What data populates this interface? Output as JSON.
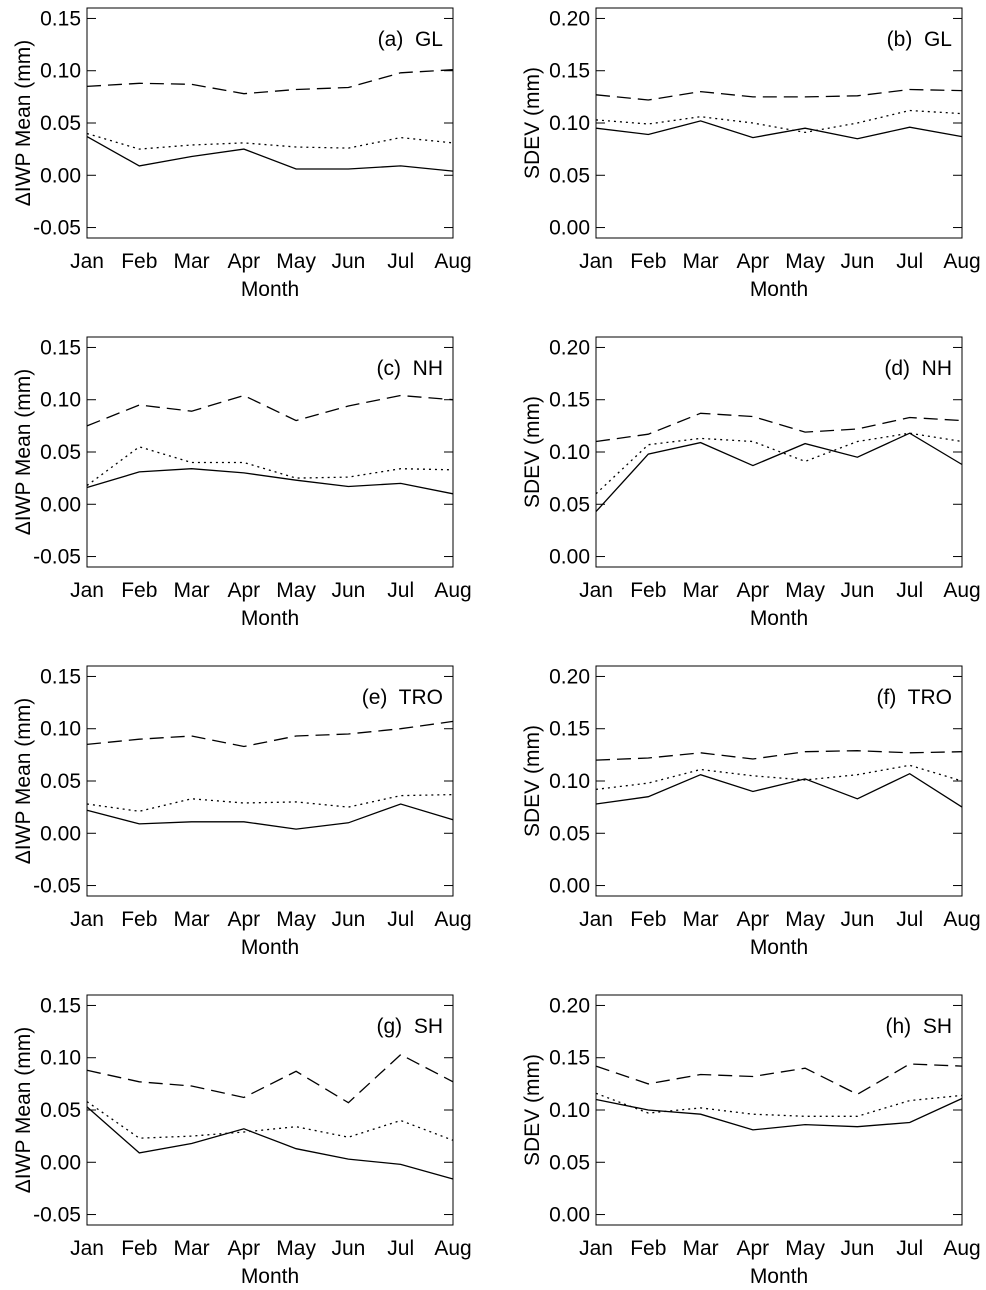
{
  "chart_data": [
    {
      "type": "line",
      "annotation": "(a)  GL",
      "y_label": "ΔIWP Mean (mm)",
      "x_label": "Month",
      "categories": [
        "Jan",
        "Feb",
        "Mar",
        "Apr",
        "May",
        "Jun",
        "Jul",
        "Aug"
      ],
      "ylim": [
        -0.06,
        0.16
      ],
      "yticks": [
        {
          "value": 0.15,
          "label": "0.15"
        },
        {
          "value": 0.1,
          "label": "0.10"
        },
        {
          "value": 0.05,
          "label": "0.05"
        },
        {
          "value": 0,
          "label": "0.00"
        },
        {
          "value": -0.05,
          "label": "-0.05"
        }
      ],
      "series": [
        {
          "color": "#000000",
          "style": "solid",
          "values": [
            0.037,
            0.009,
            0.018,
            0.025,
            0.006,
            0.006,
            0.009,
            0.004
          ]
        },
        {
          "color": "#000000",
          "style": "dashed",
          "values": [
            0.085,
            0.088,
            0.087,
            0.078,
            0.082,
            0.084,
            0.098,
            0.101
          ]
        },
        {
          "color": "#000000",
          "style": "dotted",
          "values": [
            0.04,
            0.025,
            0.029,
            0.031,
            0.027,
            0.026,
            0.036,
            0.031
          ]
        }
      ]
    },
    {
      "type": "line",
      "annotation": "(b)  GL",
      "y_label": "SDEV (mm)",
      "x_label": "Month",
      "categories": [
        "Jan",
        "Feb",
        "Mar",
        "Apr",
        "May",
        "Jun",
        "Jul",
        "Aug"
      ],
      "ylim": [
        -0.01,
        0.21
      ],
      "yticks": [
        {
          "value": 0.2,
          "label": "0.20"
        },
        {
          "value": 0.15,
          "label": "0.15"
        },
        {
          "value": 0.1,
          "label": "0.10"
        },
        {
          "value": 0.05,
          "label": "0.05"
        },
        {
          "value": 0,
          "label": "0.00"
        }
      ],
      "series": [
        {
          "color": "#000000",
          "style": "solid",
          "values": [
            0.095,
            0.089,
            0.102,
            0.086,
            0.095,
            0.085,
            0.096,
            0.087
          ]
        },
        {
          "color": "#000000",
          "style": "dashed",
          "values": [
            0.127,
            0.122,
            0.13,
            0.125,
            0.125,
            0.126,
            0.132,
            0.131
          ]
        },
        {
          "color": "#000000",
          "style": "dotted",
          "values": [
            0.103,
            0.099,
            0.106,
            0.1,
            0.091,
            0.1,
            0.112,
            0.109
          ]
        }
      ]
    },
    {
      "type": "line",
      "annotation": "(c)  NH",
      "y_label": "ΔIWP Mean (mm)",
      "x_label": "Month",
      "categories": [
        "Jan",
        "Feb",
        "Mar",
        "Apr",
        "May",
        "Jun",
        "Jul",
        "Aug"
      ],
      "ylim": [
        -0.06,
        0.16
      ],
      "yticks": [
        {
          "value": 0.15,
          "label": "0.15"
        },
        {
          "value": 0.1,
          "label": "0.10"
        },
        {
          "value": 0.05,
          "label": "0.05"
        },
        {
          "value": 0,
          "label": "0.00"
        },
        {
          "value": -0.05,
          "label": "-0.05"
        }
      ],
      "series": [
        {
          "color": "#000000",
          "style": "solid",
          "values": [
            0.016,
            0.031,
            0.034,
            0.03,
            0.023,
            0.017,
            0.02,
            0.01
          ]
        },
        {
          "color": "#000000",
          "style": "dashed",
          "values": [
            0.075,
            0.095,
            0.089,
            0.104,
            0.08,
            0.094,
            0.104,
            0.1
          ]
        },
        {
          "color": "#000000",
          "style": "dotted",
          "values": [
            0.018,
            0.055,
            0.04,
            0.04,
            0.025,
            0.026,
            0.034,
            0.033
          ]
        }
      ]
    },
    {
      "type": "line",
      "annotation": "(d)  NH",
      "y_label": "SDEV (mm)",
      "x_label": "Month",
      "categories": [
        "Jan",
        "Feb",
        "Mar",
        "Apr",
        "May",
        "Jun",
        "Jul",
        "Aug"
      ],
      "ylim": [
        -0.01,
        0.21
      ],
      "yticks": [
        {
          "value": 0.2,
          "label": "0.20"
        },
        {
          "value": 0.15,
          "label": "0.15"
        },
        {
          "value": 0.1,
          "label": "0.10"
        },
        {
          "value": 0.05,
          "label": "0.05"
        },
        {
          "value": 0,
          "label": "0.00"
        }
      ],
      "series": [
        {
          "color": "#000000",
          "style": "solid",
          "values": [
            0.043,
            0.098,
            0.109,
            0.087,
            0.108,
            0.095,
            0.118,
            0.088
          ]
        },
        {
          "color": "#000000",
          "style": "dashed",
          "values": [
            0.11,
            0.117,
            0.137,
            0.134,
            0.119,
            0.122,
            0.133,
            0.13
          ]
        },
        {
          "color": "#000000",
          "style": "dotted",
          "values": [
            0.06,
            0.107,
            0.113,
            0.11,
            0.091,
            0.11,
            0.118,
            0.11
          ]
        }
      ]
    },
    {
      "type": "line",
      "annotation": "(e)  TRO",
      "y_label": "ΔIWP Mean (mm)",
      "x_label": "Month",
      "categories": [
        "Jan",
        "Feb",
        "Mar",
        "Apr",
        "May",
        "Jun",
        "Jul",
        "Aug"
      ],
      "ylim": [
        -0.06,
        0.16
      ],
      "yticks": [
        {
          "value": 0.15,
          "label": "0.15"
        },
        {
          "value": 0.1,
          "label": "0.10"
        },
        {
          "value": 0.05,
          "label": "0.05"
        },
        {
          "value": 0,
          "label": "0.00"
        },
        {
          "value": -0.05,
          "label": "-0.05"
        }
      ],
      "series": [
        {
          "color": "#000000",
          "style": "solid",
          "values": [
            0.022,
            0.009,
            0.011,
            0.011,
            0.004,
            0.01,
            0.028,
            0.013
          ]
        },
        {
          "color": "#000000",
          "style": "dashed",
          "values": [
            0.085,
            0.09,
            0.093,
            0.083,
            0.093,
            0.095,
            0.1,
            0.107
          ]
        },
        {
          "color": "#000000",
          "style": "dotted",
          "values": [
            0.028,
            0.021,
            0.033,
            0.029,
            0.03,
            0.025,
            0.036,
            0.037
          ]
        }
      ]
    },
    {
      "type": "line",
      "annotation": "(f)  TRO",
      "y_label": "SDEV (mm)",
      "x_label": "Month",
      "categories": [
        "Jan",
        "Feb",
        "Mar",
        "Apr",
        "May",
        "Jun",
        "Jul",
        "Aug"
      ],
      "ylim": [
        -0.01,
        0.21
      ],
      "yticks": [
        {
          "value": 0.2,
          "label": "0.20"
        },
        {
          "value": 0.15,
          "label": "0.15"
        },
        {
          "value": 0.1,
          "label": "0.10"
        },
        {
          "value": 0.05,
          "label": "0.05"
        },
        {
          "value": 0,
          "label": "0.00"
        }
      ],
      "series": [
        {
          "color": "#000000",
          "style": "solid",
          "values": [
            0.078,
            0.085,
            0.106,
            0.09,
            0.102,
            0.083,
            0.107,
            0.075
          ]
        },
        {
          "color": "#000000",
          "style": "dashed",
          "values": [
            0.12,
            0.122,
            0.127,
            0.121,
            0.128,
            0.129,
            0.127,
            0.128
          ]
        },
        {
          "color": "#000000",
          "style": "dotted",
          "values": [
            0.092,
            0.098,
            0.111,
            0.105,
            0.101,
            0.106,
            0.115,
            0.1
          ]
        }
      ]
    },
    {
      "type": "line",
      "annotation": "(g)  SH",
      "y_label": "ΔIWP Mean (mm)",
      "x_label": "Month",
      "categories": [
        "Jan",
        "Feb",
        "Mar",
        "Apr",
        "May",
        "Jun",
        "Jul",
        "Aug"
      ],
      "ylim": [
        -0.06,
        0.16
      ],
      "yticks": [
        {
          "value": 0.15,
          "label": "0.15"
        },
        {
          "value": 0.1,
          "label": "0.10"
        },
        {
          "value": 0.05,
          "label": "0.05"
        },
        {
          "value": 0,
          "label": "0.00"
        },
        {
          "value": -0.05,
          "label": "-0.05"
        }
      ],
      "series": [
        {
          "color": "#000000",
          "style": "solid",
          "values": [
            0.053,
            0.009,
            0.018,
            0.032,
            0.013,
            0.003,
            -0.002,
            -0.016
          ]
        },
        {
          "color": "#000000",
          "style": "dashed",
          "values": [
            0.088,
            0.077,
            0.073,
            0.062,
            0.087,
            0.057,
            0.103,
            0.077
          ]
        },
        {
          "color": "#000000",
          "style": "dotted",
          "values": [
            0.058,
            0.023,
            0.025,
            0.029,
            0.034,
            0.024,
            0.04,
            0.021
          ]
        }
      ]
    },
    {
      "type": "line",
      "annotation": "(h)  SH",
      "y_label": "SDEV (mm)",
      "x_label": "Month",
      "categories": [
        "Jan",
        "Feb",
        "Mar",
        "Apr",
        "May",
        "Jun",
        "Jul",
        "Aug"
      ],
      "ylim": [
        -0.01,
        0.21
      ],
      "yticks": [
        {
          "value": 0.2,
          "label": "0.20"
        },
        {
          "value": 0.15,
          "label": "0.15"
        },
        {
          "value": 0.1,
          "label": "0.10"
        },
        {
          "value": 0.05,
          "label": "0.05"
        },
        {
          "value": 0,
          "label": "0.00"
        }
      ],
      "series": [
        {
          "color": "#000000",
          "style": "solid",
          "values": [
            0.11,
            0.1,
            0.096,
            0.081,
            0.086,
            0.084,
            0.088,
            0.111
          ]
        },
        {
          "color": "#000000",
          "style": "dashed",
          "values": [
            0.142,
            0.125,
            0.134,
            0.132,
            0.14,
            0.115,
            0.144,
            0.142
          ]
        },
        {
          "color": "#000000",
          "style": "dotted",
          "values": [
            0.116,
            0.097,
            0.102,
            0.096,
            0.094,
            0.094,
            0.109,
            0.114
          ]
        }
      ]
    }
  ]
}
